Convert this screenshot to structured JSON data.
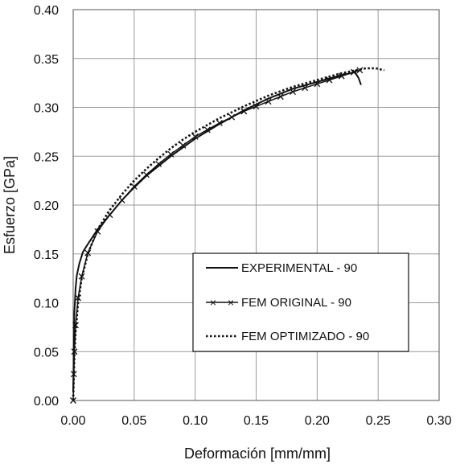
{
  "chart_data": {
    "type": "line",
    "title": "",
    "xlabel": "Deformación [mm/mm]",
    "ylabel": "Esfuerzo [GPa]",
    "xlim": [
      0,
      0.3
    ],
    "ylim": [
      0,
      0.4
    ],
    "xticks": [
      "0.00",
      "0.05",
      "0.10",
      "0.15",
      "0.20",
      "0.25",
      "0.30"
    ],
    "yticks": [
      "0.00",
      "0.05",
      "0.10",
      "0.15",
      "0.20",
      "0.25",
      "0.30",
      "0.35",
      "0.40"
    ],
    "grid": true,
    "legend_position": "lower-right",
    "series": [
      {
        "name": "EXPERIMENTAL - 90",
        "style": "solid",
        "color": "#111111",
        "x": [
          0.0,
          0.001,
          0.002,
          0.003,
          0.005,
          0.008,
          0.012,
          0.02,
          0.03,
          0.04,
          0.05,
          0.06,
          0.08,
          0.1,
          0.12,
          0.14,
          0.16,
          0.18,
          0.2,
          0.22,
          0.231,
          0.234,
          0.236
        ],
        "y": [
          0.01,
          0.09,
          0.115,
          0.128,
          0.14,
          0.152,
          0.16,
          0.175,
          0.19,
          0.205,
          0.218,
          0.23,
          0.25,
          0.268,
          0.283,
          0.297,
          0.309,
          0.319,
          0.326,
          0.333,
          0.336,
          0.33,
          0.323
        ]
      },
      {
        "name": "FEM ORIGINAL - 90",
        "style": "solid-x",
        "color": "#111111",
        "x": [
          0.0,
          0.0005,
          0.001,
          0.002,
          0.004,
          0.007,
          0.012,
          0.02,
          0.03,
          0.04,
          0.05,
          0.06,
          0.07,
          0.08,
          0.09,
          0.1,
          0.11,
          0.12,
          0.13,
          0.14,
          0.15,
          0.16,
          0.17,
          0.18,
          0.19,
          0.2,
          0.21,
          0.22,
          0.23,
          0.235
        ],
        "y": [
          0.0,
          0.027,
          0.05,
          0.077,
          0.105,
          0.127,
          0.151,
          0.173,
          0.19,
          0.205,
          0.219,
          0.231,
          0.242,
          0.252,
          0.261,
          0.27,
          0.277,
          0.284,
          0.29,
          0.296,
          0.301,
          0.306,
          0.311,
          0.316,
          0.32,
          0.324,
          0.328,
          0.332,
          0.336,
          0.338
        ]
      },
      {
        "name": "FEM OPTIMIZADO - 90",
        "style": "dotted",
        "color": "#111111",
        "x": [
          0.0,
          0.001,
          0.002,
          0.004,
          0.007,
          0.012,
          0.02,
          0.03,
          0.04,
          0.05,
          0.06,
          0.07,
          0.08,
          0.09,
          0.1,
          0.12,
          0.14,
          0.16,
          0.18,
          0.2,
          0.22,
          0.24,
          0.248,
          0.255
        ],
        "y": [
          0.0,
          0.045,
          0.07,
          0.1,
          0.125,
          0.15,
          0.175,
          0.195,
          0.211,
          0.225,
          0.237,
          0.248,
          0.258,
          0.267,
          0.275,
          0.289,
          0.301,
          0.312,
          0.321,
          0.328,
          0.335,
          0.34,
          0.34,
          0.338
        ]
      }
    ]
  }
}
